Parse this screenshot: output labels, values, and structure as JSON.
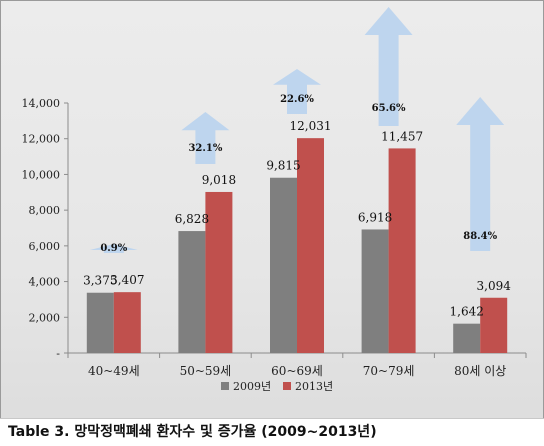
{
  "caption": "Table 3. 망막정맥폐쇄 환자수 및 증가율 (2009~2013년)",
  "colors": {
    "series_2009": "#7f7f7f",
    "series_2013": "#c0504d",
    "arrow": "#b9d3ee"
  },
  "chart_data": {
    "type": "bar",
    "title": "",
    "xlabel": "",
    "ylabel": "",
    "categories": [
      "40~49세",
      "50~59세",
      "60~69세",
      "70~79세",
      "80세 이상"
    ],
    "series": [
      {
        "name": "2009년",
        "values": [
          3375,
          6828,
          9815,
          6918,
          1642
        ],
        "labels": [
          "3,375",
          "6,828",
          "9,815",
          "6,918",
          "1,642"
        ]
      },
      {
        "name": "2013년",
        "values": [
          3407,
          9018,
          12031,
          11457,
          3094
        ],
        "labels": [
          "3,407",
          "9,018",
          "12,031",
          "11,457",
          "3,094"
        ]
      }
    ],
    "growth_rates": [
      "0.9%",
      "32.1%",
      "22.6%",
      "65.6%",
      "88.4%"
    ],
    "ylim": [
      0,
      14000
    ],
    "yticks": [
      {
        "value": 0,
        "label": "-"
      },
      {
        "value": 2000,
        "label": "2,000"
      },
      {
        "value": 4000,
        "label": "4,000"
      },
      {
        "value": 6000,
        "label": "6,000"
      },
      {
        "value": 8000,
        "label": "8,000"
      },
      {
        "value": 10000,
        "label": "10,000"
      },
      {
        "value": 12000,
        "label": "12,000"
      },
      {
        "value": 14000,
        "label": "14,000"
      }
    ],
    "grid": false,
    "legend": "bottom"
  }
}
